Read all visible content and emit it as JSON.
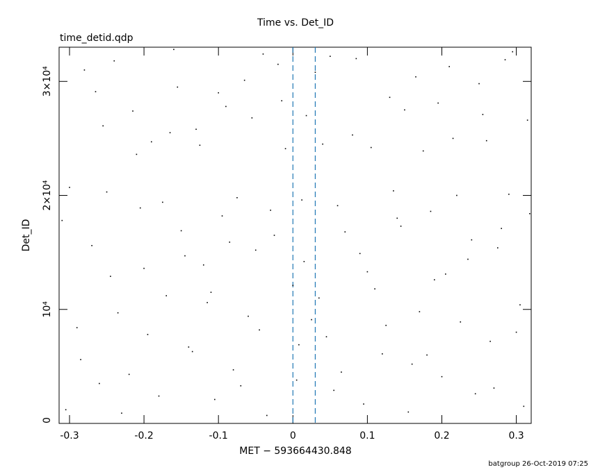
{
  "chart_data": {
    "type": "scatter",
    "title": "Time vs. Det_ID",
    "subtitle": "time_detid.qdp",
    "xlabel": "MET − 593664430.848",
    "ylabel": "Det_ID",
    "footer": "batgroup 26-Oct-2019 07:25",
    "xlim": [
      -0.314,
      0.32
    ],
    "ylim": [
      0,
      33000
    ],
    "xticks": [
      -0.3,
      -0.2,
      -0.1,
      0,
      0.1,
      0.2,
      0.3
    ],
    "yticks": [
      0,
      {
        "value": 10000,
        "label": "10⁴"
      },
      {
        "value": 20000,
        "label": "2×10⁴"
      },
      {
        "value": 30000,
        "label": "3×10⁴"
      }
    ],
    "vlines": [
      0,
      0.03
    ],
    "vline_color": "#1f77b4",
    "color": "#000000",
    "series": [
      {
        "name": "Det_ID",
        "x": [
          -0.305,
          -0.29,
          -0.27,
          -0.255,
          -0.24,
          -0.22,
          -0.205,
          -0.19,
          -0.17,
          -0.155,
          -0.14,
          -0.12,
          -0.105,
          -0.09,
          -0.075,
          -0.06,
          -0.04,
          -0.025,
          -0.01,
          0.005,
          0.015,
          0.03,
          0.045,
          0.06,
          0.08,
          0.095,
          0.11,
          0.13,
          0.145,
          0.16,
          0.175,
          0.19,
          0.21,
          0.225,
          0.24,
          0.255,
          0.27,
          0.29,
          0.305,
          0.315,
          -0.31,
          -0.285,
          -0.265,
          -0.245,
          -0.23,
          -0.21,
          -0.195,
          -0.175,
          -0.16,
          -0.145,
          -0.13,
          -0.115,
          -0.095,
          -0.08,
          -0.065,
          -0.05,
          -0.035,
          -0.015,
          0.0,
          0.012,
          0.025,
          0.04,
          0.055,
          0.07,
          0.085,
          0.1,
          0.12,
          0.135,
          0.15,
          0.17,
          0.185,
          0.2,
          0.215,
          0.235,
          0.25,
          0.265,
          0.28,
          0.295,
          0.31,
          -0.3,
          -0.28,
          -0.26,
          -0.25,
          -0.235,
          -0.215,
          -0.2,
          -0.18,
          -0.165,
          -0.15,
          -0.135,
          -0.125,
          -0.11,
          -0.1,
          -0.085,
          -0.07,
          -0.055,
          -0.045,
          -0.03,
          -0.02,
          0.008,
          0.018,
          0.035,
          0.05,
          0.065,
          0.09,
          0.105,
          0.125,
          0.14,
          0.155,
          0.165,
          0.18,
          0.195,
          0.205,
          0.22,
          0.245,
          0.26,
          0.275,
          0.285,
          0.3,
          0.318
        ],
        "values": [
          1200,
          8400,
          15600,
          26100,
          31800,
          4300,
          18900,
          24700,
          11200,
          29500,
          6700,
          13900,
          2100,
          27800,
          19800,
          9400,
          32400,
          16500,
          24100,
          3800,
          14200,
          30800,
          7600,
          19100,
          25300,
          1700,
          11800,
          28600,
          17300,
          5200,
          23900,
          12600,
          31300,
          8900,
          16100,
          27100,
          3100,
          20100,
          10400,
          26600,
          17800,
          5600,
          29100,
          12900,
          900,
          23600,
          7800,
          19400,
          32800,
          14700,
          25800,
          10600,
          18200,
          4700,
          30100,
          15200,
          700,
          28300,
          12100,
          19600,
          9100,
          24500,
          2900,
          16800,
          32000,
          13300,
          6100,
          20400,
          27500,
          9800,
          18600,
          4100,
          25000,
          14400,
          29800,
          7200,
          17100,
          32600,
          1500,
          20700,
          31000,
          3500,
          20300,
          9700,
          27400,
          13600,
          2400,
          25500,
          16900,
          6300,
          24400,
          11500,
          29000,
          15900,
          3300,
          26800,
          8200,
          18700,
          31500,
          6900,
          27000,
          11000,
          32200,
          4500,
          14900,
          24200,
          8600,
          18000,
          1000,
          30400,
          6000,
          28100,
          13100,
          20000,
          2600,
          24800,
          15400,
          31900,
          8000,
          18400
        ]
      }
    ]
  }
}
